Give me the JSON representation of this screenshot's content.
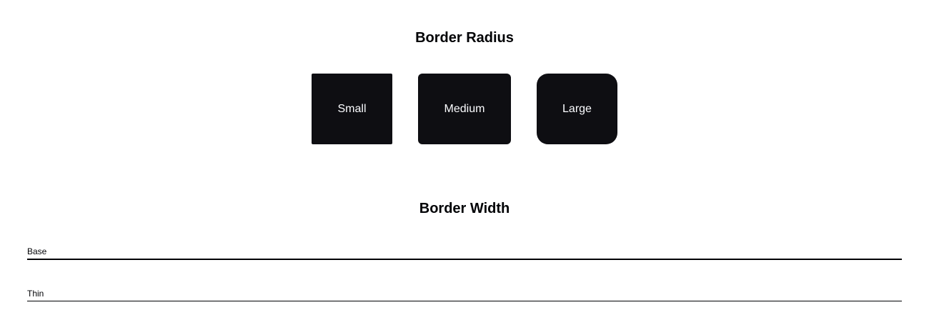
{
  "border_radius": {
    "title": "Border Radius",
    "items": [
      {
        "label": "Small"
      },
      {
        "label": "Medium"
      },
      {
        "label": "Large"
      }
    ]
  },
  "border_width": {
    "title": "Border Width",
    "items": [
      {
        "label": "Base"
      },
      {
        "label": "Thin"
      }
    ]
  },
  "colors": {
    "box_background": "#0e0e12",
    "box_text": "#fbfcff",
    "text": "#010205",
    "page_background": "#ffffff"
  }
}
